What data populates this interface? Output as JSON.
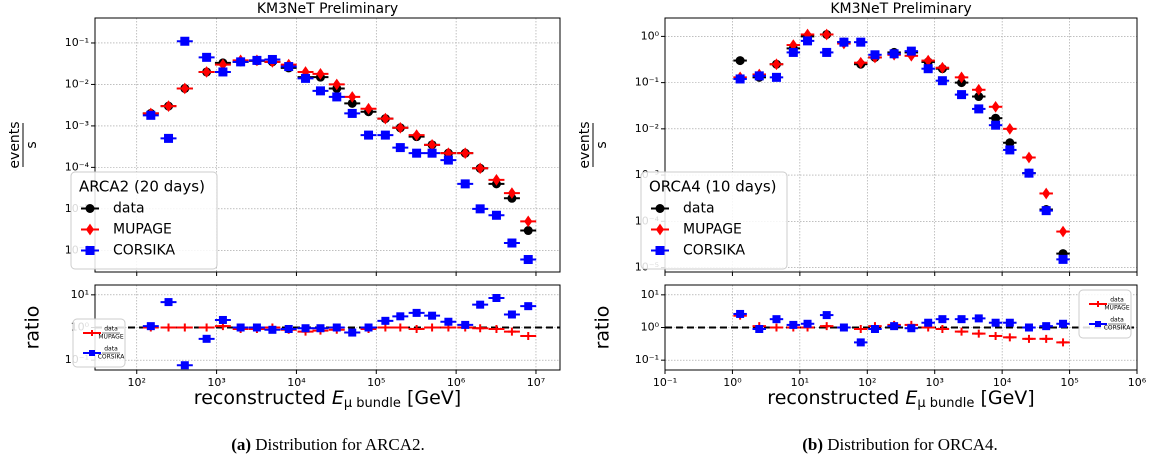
{
  "chart_data": [
    {
      "type": "scatter",
      "title": "KM3NeT Preliminary",
      "ylabel": {
        "numerator": "events",
        "denominator": "s"
      },
      "xlog": true,
      "ylog": true,
      "grid": true,
      "legend": "lower left",
      "legend_title": "ARCA2 (20 days)",
      "xlim": [
        30,
        20000000
      ],
      "xticks": [
        100,
        1000,
        10000,
        100000,
        1000000,
        10000000
      ],
      "ylim": [
        3e-07,
        0.4
      ],
      "yticks": [
        {
          "value": 1e-06,
          "label": "10⁻⁶"
        },
        {
          "value": 1e-05,
          "label": "10⁻⁵"
        },
        {
          "value": 0.0001,
          "label": "10⁻⁴"
        },
        {
          "value": 0.001,
          "label": "10⁻³"
        },
        {
          "value": 0.01,
          "label": "10⁻²"
        },
        {
          "value": 0.1,
          "label": "10⁻¹"
        }
      ],
      "x": [
        150,
        250,
        400,
        750,
        1200,
        2000,
        3200,
        5000,
        8000,
        13000,
        20000,
        32000,
        50000,
        80000,
        130000,
        200000,
        320000,
        500000,
        800000,
        1300000,
        2000000,
        3200000,
        5000000,
        8000000
      ],
      "series": [
        {
          "name": "data",
          "color": "#000000",
          "marker": "circle",
          "values": [
            0.002,
            0.003,
            0.008,
            0.02,
            0.033,
            0.035,
            0.037,
            0.035,
            0.025,
            0.015,
            0.015,
            0.008,
            0.0035,
            0.0022,
            0.0015,
            0.0009,
            0.00055,
            0.00035,
            0.00022,
            0.00022,
            9.5e-05,
            4e-05,
            1.8e-05,
            3e-06
          ]
        },
        {
          "name": "MUPAGE",
          "color": "#ff0000",
          "marker": "diamond",
          "values": [
            0.002,
            0.003,
            0.008,
            0.02,
            0.03,
            0.038,
            0.038,
            0.035,
            0.03,
            0.02,
            0.018,
            0.01,
            0.005,
            0.0026,
            0.0015,
            0.0009,
            0.0006,
            0.00035,
            0.00022,
            0.00022,
            9.5e-05,
            5e-05,
            2.4e-05,
            5e-06
          ]
        },
        {
          "name": "CORSIKA",
          "color": "#0000ff",
          "marker": "square",
          "values": [
            0.0018,
            0.0005,
            0.11,
            0.045,
            0.02,
            0.035,
            0.038,
            0.04,
            0.027,
            0.014,
            0.007,
            0.005,
            0.002,
            0.0006,
            0.0006,
            0.0003,
            0.00022,
            0.00022,
            0.00015,
            4e-05,
            1e-05,
            7e-06,
            1.5e-06,
            6e-07
          ]
        }
      ]
    },
    {
      "type": "scatter",
      "ylabel": "ratio",
      "xlabel": {
        "text": "reconstructed ",
        "symbol": "E",
        "subscript": "μ bundle",
        "unit": " [GeV]"
      },
      "xlog": true,
      "ylog": true,
      "grid": true,
      "legend": "lower left",
      "reference_line": 1,
      "xlim": [
        30,
        20000000
      ],
      "xticks": [
        {
          "value": 100,
          "label": "10²"
        },
        {
          "value": 1000,
          "label": "10³"
        },
        {
          "value": 10000,
          "label": "10⁴"
        },
        {
          "value": 100000,
          "label": "10⁵"
        },
        {
          "value": 1000000,
          "label": "10⁶"
        },
        {
          "value": 10000000,
          "label": "10⁷"
        }
      ],
      "ylim": [
        0.05,
        20
      ],
      "yticks": [
        {
          "value": 0.1,
          "label": "10⁻¹"
        },
        {
          "value": 1,
          "label": "10⁰"
        },
        {
          "value": 10,
          "label": "10¹"
        }
      ],
      "x": [
        150,
        250,
        400,
        750,
        1200,
        2000,
        3200,
        5000,
        8000,
        13000,
        20000,
        32000,
        50000,
        80000,
        130000,
        200000,
        320000,
        500000,
        800000,
        1300000,
        2000000,
        3200000,
        5000000,
        8000000
      ],
      "series": [
        {
          "name": {
            "numerator": "data",
            "denominator": "MUPAGE"
          },
          "color": "#ff0000",
          "marker": "plus",
          "values": [
            1.0,
            1.0,
            1.0,
            1.0,
            1.1,
            0.9,
            0.9,
            1.0,
            0.85,
            0.75,
            0.8,
            0.85,
            0.7,
            0.9,
            1.0,
            1.0,
            0.9,
            1.0,
            1.0,
            1.0,
            0.95,
            0.9,
            0.75,
            0.55
          ]
        },
        {
          "name": {
            "numerator": "data",
            "denominator": "CORSIKA"
          },
          "color": "#0000ff",
          "marker": "square",
          "values": [
            1.1,
            6,
            0.07,
            0.45,
            1.7,
            1.0,
            1.0,
            0.85,
            0.9,
            0.95,
            0.95,
            1.0,
            0.7,
            1.0,
            1.6,
            2.2,
            2.8,
            2.3,
            1.5,
            1.2,
            5,
            8,
            2.5,
            4.5
          ]
        }
      ]
    },
    {
      "type": "scatter",
      "title": "KM3NeT Preliminary",
      "ylabel": {
        "numerator": "events",
        "denominator": "s"
      },
      "xlog": true,
      "ylog": true,
      "grid": true,
      "legend": "lower left",
      "legend_title": "ORCA4 (10 days)",
      "xlim": [
        0.1,
        1000000
      ],
      "xticks": [
        0.1,
        1,
        10,
        100,
        1000,
        10000,
        100000,
        1000000
      ],
      "ylim": [
        8e-06,
        2.5
      ],
      "yticks": [
        {
          "value": 1e-05,
          "label": "10⁻⁵"
        },
        {
          "value": 0.0001,
          "label": "10⁻⁴"
        },
        {
          "value": 0.001,
          "label": "10⁻³"
        },
        {
          "value": 0.01,
          "label": "10⁻²"
        },
        {
          "value": 0.1,
          "label": "10⁻¹"
        },
        {
          "value": 1,
          "label": "10⁰"
        }
      ],
      "x": [
        1.3,
        2.5,
        4.5,
        8,
        13,
        25,
        45,
        80,
        130,
        250,
        450,
        800,
        1300,
        2500,
        4500,
        8000,
        13000,
        25000,
        45000,
        80000
      ],
      "series": [
        {
          "name": "data",
          "color": "#000000",
          "marker": "circle",
          "values": [
            0.3,
            0.13,
            0.25,
            0.55,
            1.0,
            1.1,
            0.75,
            0.25,
            0.35,
            0.45,
            0.45,
            0.28,
            0.2,
            0.1,
            0.05,
            0.017,
            0.005,
            0.0011,
            0.00018,
            2e-05
          ]
        },
        {
          "name": "MUPAGE",
          "color": "#ff0000",
          "marker": "diamond",
          "values": [
            0.13,
            0.15,
            0.25,
            0.65,
            1.1,
            1.1,
            0.7,
            0.27,
            0.35,
            0.4,
            0.38,
            0.3,
            0.21,
            0.13,
            0.07,
            0.03,
            0.01,
            0.0024,
            0.0004,
            6e-05
          ]
        },
        {
          "name": "CORSIKA",
          "color": "#0000ff",
          "marker": "square",
          "values": [
            0.12,
            0.14,
            0.13,
            0.45,
            0.8,
            0.45,
            0.75,
            0.75,
            0.4,
            0.42,
            0.48,
            0.2,
            0.11,
            0.055,
            0.027,
            0.012,
            0.0035,
            0.0011,
            0.00017,
            1.5e-05
          ]
        }
      ]
    },
    {
      "type": "scatter",
      "ylabel": "ratio",
      "xlabel": {
        "text": "reconstructed ",
        "symbol": "E",
        "subscript": "μ bundle",
        "unit": " [GeV]"
      },
      "xlog": true,
      "ylog": true,
      "grid": true,
      "legend": "upper right",
      "reference_line": 1,
      "xlim": [
        0.1,
        1000000
      ],
      "xticks": [
        {
          "value": 0.1,
          "label": "10⁻¹"
        },
        {
          "value": 1,
          "label": "10⁰"
        },
        {
          "value": 10,
          "label": "10¹"
        },
        {
          "value": 100,
          "label": "10²"
        },
        {
          "value": 1000,
          "label": "10³"
        },
        {
          "value": 10000,
          "label": "10⁴"
        },
        {
          "value": 100000,
          "label": "10⁵"
        },
        {
          "value": 1000000,
          "label": "10⁶"
        }
      ],
      "ylim": [
        0.05,
        20
      ],
      "yticks": [
        {
          "value": 0.1,
          "label": "10⁻¹"
        },
        {
          "value": 1,
          "label": "10⁰"
        },
        {
          "value": 10,
          "label": "10¹"
        }
      ],
      "x": [
        1.3,
        2.5,
        4.5,
        8,
        13,
        25,
        45,
        80,
        130,
        250,
        450,
        800,
        1300,
        2500,
        4500,
        8000,
        13000,
        25000,
        45000,
        80000
      ],
      "series": [
        {
          "name": {
            "numerator": "data",
            "denominator": "MUPAGE"
          },
          "color": "#ff0000",
          "marker": "plus",
          "values": [
            2.3,
            1.1,
            1.0,
            1.0,
            1.0,
            1.1,
            1.0,
            0.9,
            1.1,
            1.2,
            1.2,
            1.0,
            0.9,
            0.75,
            0.65,
            0.55,
            0.5,
            0.45,
            0.45,
            0.35
          ]
        },
        {
          "name": {
            "numerator": "data",
            "denominator": "CORSIKA"
          },
          "color": "#0000ff",
          "marker": "square",
          "values": [
            2.6,
            0.9,
            1.8,
            1.2,
            1.3,
            2.4,
            1.0,
            0.35,
            0.9,
            1.1,
            0.95,
            1.4,
            1.8,
            1.8,
            1.9,
            1.4,
            1.4,
            1.0,
            1.1,
            1.3
          ]
        }
      ]
    }
  ],
  "captions": [
    {
      "label": "(a)",
      "text": " Distribution for ARCA2."
    },
    {
      "label": "(b)",
      "text": " Distribution for ORCA4."
    }
  ]
}
